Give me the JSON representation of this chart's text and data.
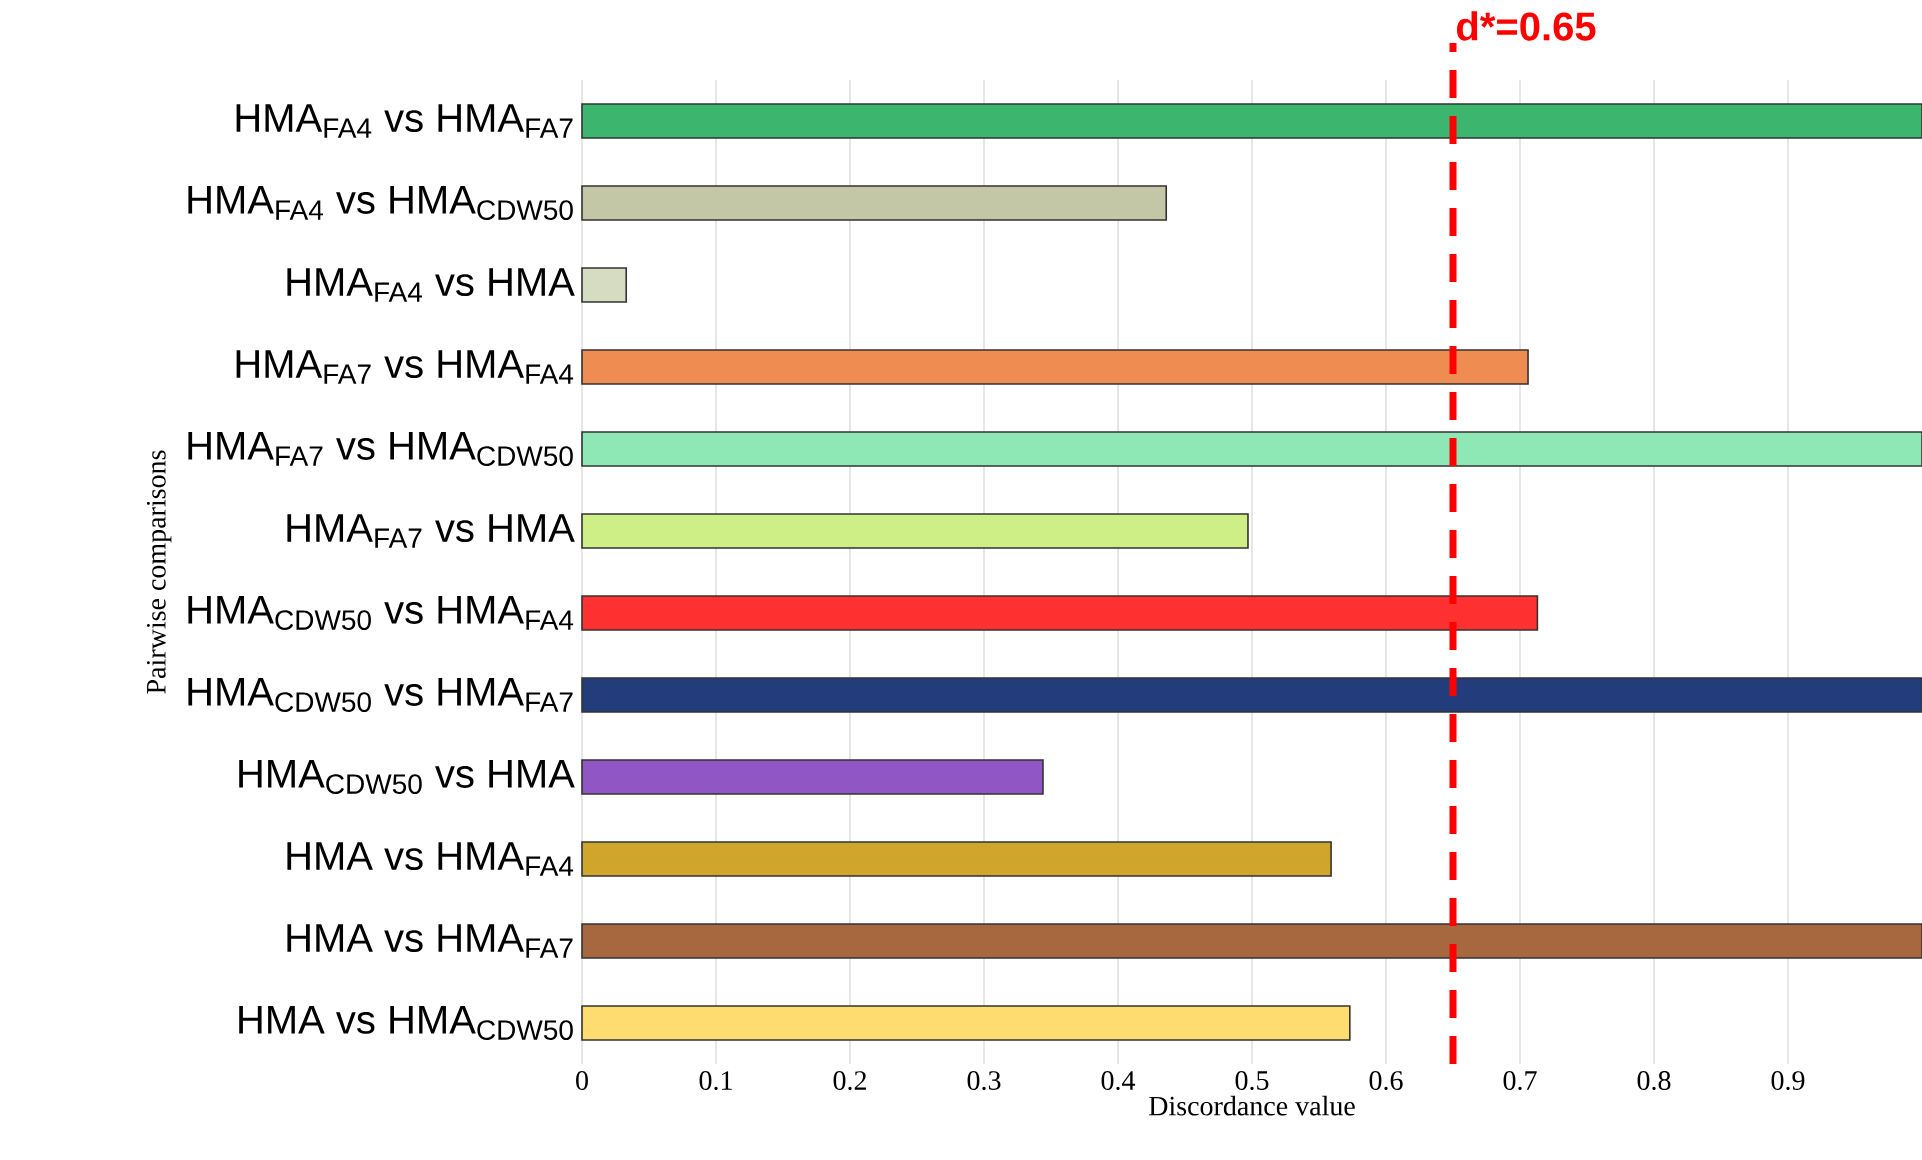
{
  "chart_data": {
    "type": "bar",
    "orientation": "horizontal",
    "xlabel": "Discordance value",
    "ylabel": "Pairwise comparisons",
    "categories": [
      "HMA$_{FA4}$ vs HMA$_{FA7}$",
      "HMA$_{FA4}$ vs HMA$_{CDW50}$",
      "HMA$_{FA4}$ vs HMA",
      "HMA$_{FA7}$ vs HMA$_{FA4}$",
      "HMA$_{FA7}$ vs HMA$_{CDW50}$",
      "HMA$_{FA7}$ vs HMA",
      "HMA$_{CDW50}$ vs HMA$_{FA4}$",
      "HMA$_{CDW50}$ vs HMA$_{FA7}$",
      "HMA$_{CDW50}$ vs HMA",
      "HMA vs HMA$_{FA4}$",
      "HMA vs HMA$_{FA7}$",
      "HMA vs HMA$_{CDW50}$"
    ],
    "values": [
      1.0,
      0.436,
      0.033,
      0.706,
      1.0,
      0.497,
      0.713,
      1.0,
      0.344,
      0.559,
      1.0,
      0.573
    ],
    "colors": [
      "#3cb56e",
      "#c4c7a6",
      "#d6dcc2",
      "#ef8c52",
      "#8de8b6",
      "#cdef86",
      "#ff3030",
      "#233d7c",
      "#9057c4",
      "#cfa52c",
      "#a7683f",
      "#ffdc70"
    ],
    "xlim": [
      0,
      1
    ],
    "xticks": [
      0,
      0.1,
      0.2,
      0.3,
      0.4,
      0.5,
      0.6,
      0.7,
      0.8,
      0.9
    ],
    "grid": "x",
    "ref_lines": [
      {
        "axis": "x",
        "value": 0.65,
        "label": "d*=0.65",
        "color": "#ff0000",
        "line_style": "dashed"
      }
    ]
  }
}
